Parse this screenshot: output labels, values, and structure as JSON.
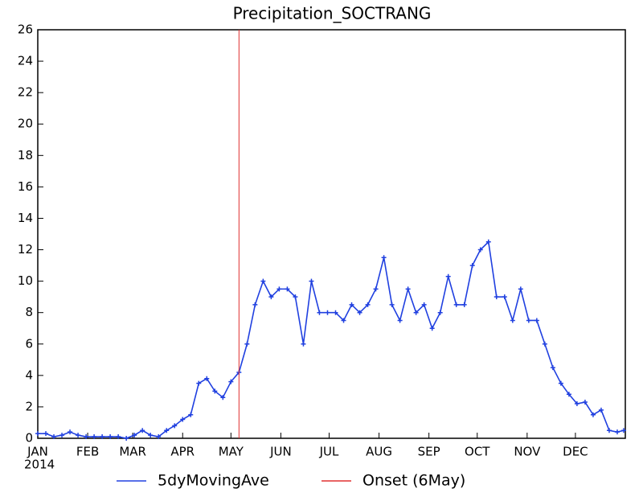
{
  "chart_data": {
    "type": "line",
    "title": "Precipitation_SOCTRANG",
    "x": [
      0,
      5,
      10,
      15,
      20,
      25,
      30,
      35,
      40,
      45,
      50,
      55,
      60,
      65,
      70,
      75,
      80,
      85,
      90,
      95,
      100,
      105,
      110,
      115,
      120,
      125,
      130,
      135,
      140,
      145,
      150,
      155,
      160,
      165,
      170,
      175,
      180,
      185,
      190,
      195,
      200,
      205,
      210,
      215,
      220,
      225,
      230,
      235,
      240,
      245,
      250,
      255,
      260,
      265,
      270,
      275,
      280,
      285,
      290,
      295,
      300,
      305,
      310,
      315,
      320,
      325,
      330,
      335,
      340,
      345,
      350,
      355,
      360,
      364
    ],
    "series": [
      {
        "name": "5dyMovingAve",
        "color": "#2040e0",
        "values": [
          0.3,
          0.3,
          0.1,
          0.2,
          0.4,
          0.2,
          0.1,
          0.1,
          0.1,
          0.1,
          0.1,
          0.0,
          0.2,
          0.5,
          0.2,
          0.1,
          0.5,
          0.8,
          1.2,
          1.5,
          3.5,
          3.8,
          3.0,
          2.6,
          3.6,
          4.2,
          6.0,
          8.5,
          10.0,
          9.0,
          9.5,
          9.5,
          9.0,
          6.0,
          10.0,
          8.0,
          8.0,
          8.0,
          7.5,
          8.5,
          8.0,
          8.5,
          9.5,
          11.5,
          8.5,
          7.5,
          9.5,
          8.0,
          8.5,
          7.0,
          8.0,
          10.3,
          8.5,
          8.5,
          11.0,
          12.0,
          12.5,
          9.0,
          9.0,
          7.5,
          9.5,
          7.5,
          7.5,
          6.0,
          4.5,
          3.5,
          2.8,
          2.2,
          2.3,
          1.5,
          1.8,
          0.5,
          0.4,
          0.5
        ]
      }
    ],
    "onset": {
      "name": "Onset (6May)",
      "x": 125,
      "color": "#e03030"
    },
    "year_label": "2014",
    "xlim": [
      0,
      365
    ],
    "xticks": [
      {
        "value": 0,
        "label": "JAN"
      },
      {
        "value": 31,
        "label": "FEB"
      },
      {
        "value": 59,
        "label": "MAR"
      },
      {
        "value": 90,
        "label": "APR"
      },
      {
        "value": 120,
        "label": "MAY"
      },
      {
        "value": 151,
        "label": "JUN"
      },
      {
        "value": 181,
        "label": "JUL"
      },
      {
        "value": 212,
        "label": "AUG"
      },
      {
        "value": 243,
        "label": "SEP"
      },
      {
        "value": 273,
        "label": "OCT"
      },
      {
        "value": 304,
        "label": "NOV"
      },
      {
        "value": 334,
        "label": "DEC"
      }
    ],
    "ylim": [
      0,
      26
    ],
    "yticks": [
      0,
      2,
      4,
      6,
      8,
      10,
      12,
      14,
      16,
      18,
      20,
      22,
      24,
      26
    ]
  }
}
